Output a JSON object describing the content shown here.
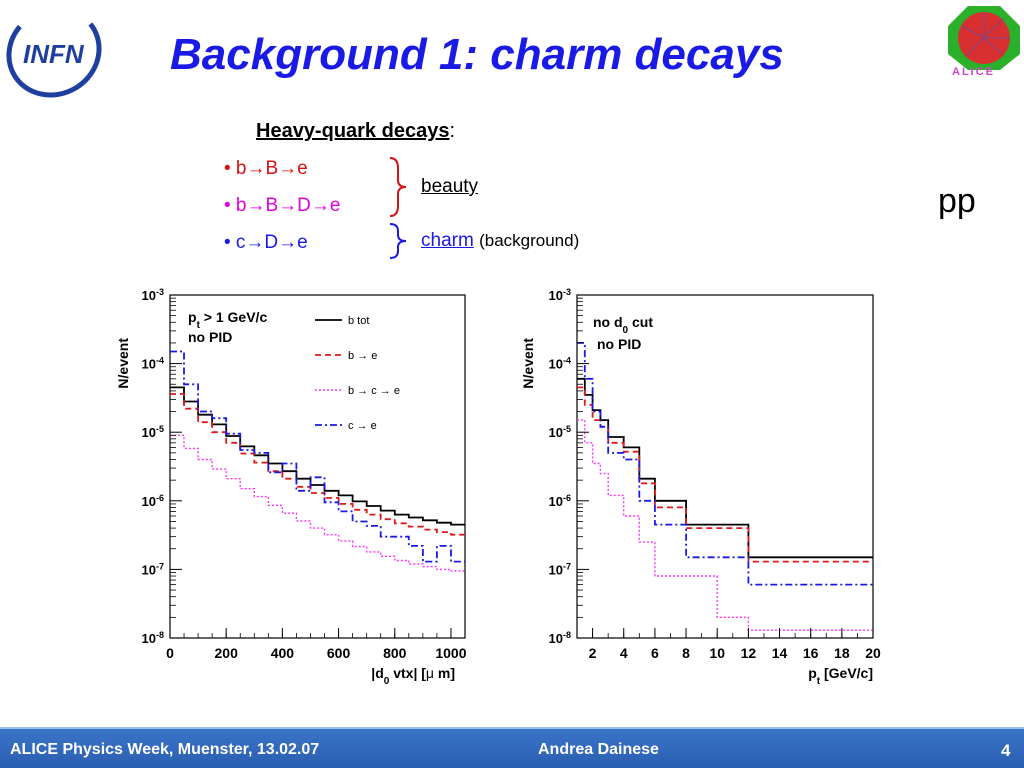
{
  "slide": {
    "title": "Background 1: charm decays",
    "heavy_quark_heading": "Heavy-quark decays",
    "heavy_quark_colon": ":",
    "bullets": [
      "• b→B→e",
      "• b→B→D→e",
      "• c→D→e"
    ],
    "group_beauty": "beauty",
    "group_charm": "charm",
    "group_charm_note": "(background)",
    "collision_label": "pp",
    "logo_left": "INFN",
    "logo_right": "ALICE"
  },
  "footer": {
    "left": "ALICE Physics Week, Muenster, 13.02.07",
    "center": "Andrea Dainese",
    "page": "4"
  },
  "colors": {
    "title": "#1a1ae6",
    "b_tot": "#000000",
    "b_e": "#e01818",
    "b_c_e": "#ff33ff",
    "c_e": "#1a1ae6",
    "footer_bg": "#2f66bb"
  },
  "chart_data": [
    {
      "type": "line",
      "step": true,
      "log_y": true,
      "ylim": [
        1e-08,
        0.001
      ],
      "xlim": [
        0,
        1050
      ],
      "xlabel_parts": [
        "|d",
        "0",
        " vtx| [",
        "μ",
        " m]"
      ],
      "ylabel": "N/event",
      "x_ticks": [
        0,
        200,
        400,
        600,
        800,
        1000
      ],
      "y_tick_exponents": [
        "-3",
        "-4",
        "-5",
        "-6",
        "-7",
        "-8"
      ],
      "annotations": [
        "p",
        "t",
        " > 1 GeV/c",
        "no PID"
      ],
      "legend_position": "top-right",
      "legend": [
        "b tot",
        "b → e",
        "b → c → e",
        "c → e"
      ],
      "bin_edges": [
        0,
        50,
        100,
        150,
        200,
        250,
        300,
        350,
        400,
        450,
        500,
        550,
        600,
        650,
        700,
        750,
        800,
        850,
        900,
        950,
        1000,
        1050
      ],
      "series": [
        {
          "name": "b tot",
          "values": [
            4.5e-05,
            2.8e-05,
            1.8e-05,
            1.3e-05,
            8.8e-06,
            6.2e-06,
            4.6e-06,
            3.5e-06,
            2.7e-06,
            2.1e-06,
            1.7e-06,
            1.4e-06,
            1.2e-06,
            9.8e-07,
            8.4e-07,
            7.2e-07,
            6.3e-07,
            5.7e-07,
            5.2e-07,
            4.8e-07,
            4.5e-07
          ]
        },
        {
          "name": "b → e",
          "values": [
            3.6e-05,
            2.2e-05,
            1.4e-05,
            1e-05,
            7e-06,
            4.9e-06,
            3.6e-06,
            2.7e-06,
            2.1e-06,
            1.6e-06,
            1.3e-06,
            1.1e-06,
            9e-07,
            7.4e-07,
            6.3e-07,
            5.4e-07,
            4.7e-07,
            4.2e-07,
            3.8e-07,
            3.5e-07,
            3.2e-07
          ]
        },
        {
          "name": "b → c → e",
          "values": [
            9e-06,
            5.8e-06,
            4e-06,
            2.9e-06,
            2.1e-06,
            1.5e-06,
            1.15e-06,
            8.6e-07,
            6.6e-07,
            5.1e-07,
            4e-07,
            3.2e-07,
            2.6e-07,
            2.15e-07,
            1.8e-07,
            1.55e-07,
            1.35e-07,
            1.2e-07,
            1.1e-07,
            1e-07,
            9.5e-08
          ]
        },
        {
          "name": "c → e",
          "values": [
            0.00015,
            5e-05,
            2e-05,
            1.6e-05,
            9.5e-06,
            5.5e-06,
            5e-06,
            2.6e-06,
            3.5e-06,
            1.4e-06,
            2.2e-06,
            9.5e-07,
            7e-07,
            5e-07,
            4.3e-07,
            3e-07,
            3e-07,
            2.2e-07,
            1.3e-07,
            2.2e-07,
            1.3e-07
          ]
        }
      ]
    },
    {
      "type": "line",
      "step": true,
      "log_y": true,
      "ylim": [
        1e-08,
        0.001
      ],
      "xlim": [
        1,
        20
      ],
      "xlabel_parts": [
        "p",
        "t",
        " [GeV/c]"
      ],
      "ylabel": "N/event",
      "x_ticks": [
        2,
        4,
        6,
        8,
        10,
        12,
        14,
        16,
        18,
        20
      ],
      "y_tick_exponents": [
        "-3",
        "-4",
        "-5",
        "-6",
        "-7",
        "-8"
      ],
      "annotations": [
        "no d",
        "0",
        " cut",
        "no PID"
      ],
      "bin_edges": [
        1,
        1.5,
        2,
        2.5,
        3,
        4,
        5,
        6,
        8,
        10,
        12,
        16,
        20
      ],
      "series": [
        {
          "name": "b tot",
          "values": [
            6e-05,
            3.5e-05,
            2.1e-05,
            1.5e-05,
            8.5e-06,
            6e-06,
            2.1e-06,
            1e-06,
            4.5e-07,
            4.5e-07,
            1.5e-07,
            1.5e-07
          ]
        },
        {
          "name": "b → e",
          "values": [
            4.5e-05,
            2.5e-05,
            1.5e-05,
            1.2e-05,
            7e-06,
            5.2e-06,
            1.8e-06,
            8e-07,
            4e-07,
            4e-07,
            1.3e-07,
            1.3e-07
          ]
        },
        {
          "name": "b → c → e",
          "values": [
            1.5e-05,
            7e-06,
            3.5e-06,
            2.5e-06,
            1.2e-06,
            6e-07,
            2.5e-07,
            8e-08,
            8e-08,
            2e-08,
            1.3e-08,
            1.3e-08
          ]
        },
        {
          "name": "c → e",
          "values": [
            0.0002,
            6e-05,
            2e-05,
            1.2e-05,
            5e-06,
            4e-06,
            1e-06,
            4.5e-07,
            1.5e-07,
            1.5e-07,
            6e-08,
            6e-08
          ]
        }
      ]
    }
  ]
}
